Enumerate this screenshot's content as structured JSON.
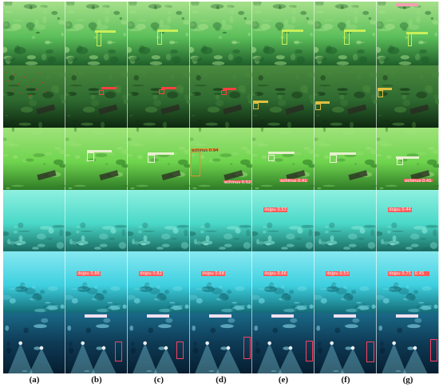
{
  "columns": [
    "(a)",
    "(b)",
    "(c)",
    "(d)",
    "(e)",
    "(f)",
    "(g)"
  ],
  "rows": [
    {
      "scene": "green-seagrass",
      "colors": {
        "base": "#3d9a45",
        "mid": "#5cbf5a",
        "light": "#a6e08a",
        "dark": "#1f5e2a"
      },
      "annotations": [
        {
          "column": 1,
          "kind": "box",
          "color": "#c8f05a"
        },
        {
          "column": 1,
          "kind": "label",
          "text": "",
          "color": "#c8f05a"
        },
        {
          "column": 2,
          "kind": "box",
          "color": "#c8f05a"
        },
        {
          "column": 2,
          "kind": "label",
          "text": "",
          "color": "#c8f05a"
        },
        {
          "column": 4,
          "kind": "box",
          "color": "#c8f05a"
        },
        {
          "column": 4,
          "kind": "label",
          "text": "",
          "color": "#c8f05a"
        },
        {
          "column": 5,
          "kind": "box",
          "color": "#c8f05a"
        },
        {
          "column": 5,
          "kind": "label",
          "text": "",
          "color": "#c8f05a"
        },
        {
          "column": 6,
          "kind": "box",
          "color": "#c8f05a"
        },
        {
          "column": 6,
          "kind": "label",
          "text": "",
          "color": "#c8f05a"
        },
        {
          "column": 6,
          "kind": "label",
          "text": "",
          "color": "#f0a0b0"
        }
      ]
    },
    {
      "scene": "dark-green-bottom",
      "colors": {
        "base": "#1f4a22",
        "mid": "#2e6a30",
        "light": "#4a8a3e",
        "dark": "#0e2810"
      },
      "annotations": [
        {
          "column": 0,
          "kind": "dots",
          "color": "#e03020"
        },
        {
          "column": 1,
          "kind": "box",
          "color": "#ff4040"
        },
        {
          "column": 1,
          "kind": "label",
          "text": "",
          "color": "#ff4040"
        },
        {
          "column": 2,
          "kind": "box",
          "color": "#ff4040"
        },
        {
          "column": 2,
          "kind": "label",
          "text": "",
          "color": "#ff4040"
        },
        {
          "column": 3,
          "kind": "box",
          "color": "#ff4040"
        },
        {
          "column": 3,
          "kind": "label",
          "text": "",
          "color": "#ff4040"
        },
        {
          "column": 4,
          "kind": "box",
          "color": "#e0c040"
        },
        {
          "column": 4,
          "kind": "label",
          "text": "",
          "color": "#e0c040"
        },
        {
          "column": 5,
          "kind": "box",
          "color": "#e0c040"
        },
        {
          "column": 5,
          "kind": "label",
          "text": "",
          "color": "#e0c040"
        },
        {
          "column": 6,
          "kind": "box",
          "color": "#e0c040"
        },
        {
          "column": 6,
          "kind": "label",
          "text": "",
          "color": "#e0c040"
        }
      ]
    },
    {
      "scene": "bright-green-water",
      "colors": {
        "base": "#4cc23a",
        "mid": "#6fd44e",
        "light": "#9fe27a",
        "dark": "#2e7a26"
      },
      "annotations": [
        {
          "column": 1,
          "kind": "box",
          "color": "#e8f0d0"
        },
        {
          "column": 1,
          "kind": "label",
          "text": "",
          "color": "#e8f0d0"
        },
        {
          "column": 2,
          "kind": "box",
          "color": "#e8f0d0"
        },
        {
          "column": 2,
          "kind": "label",
          "text": "",
          "color": "#e8f0d0"
        },
        {
          "column": 3,
          "kind": "box",
          "color": "#e09030"
        },
        {
          "column": 3,
          "kind": "label",
          "text": "echinus 0.94",
          "color": "#e09030"
        },
        {
          "column": 3,
          "kind": "label",
          "text": "echinus 0.52",
          "color": "#ff6060"
        },
        {
          "column": 4,
          "kind": "box",
          "color": "#e8f0d0"
        },
        {
          "column": 4,
          "kind": "label",
          "text": "",
          "color": "#e8f0d0"
        },
        {
          "column": 4,
          "kind": "label",
          "text": "echinus 0.41",
          "color": "#ff6060"
        },
        {
          "column": 5,
          "kind": "box",
          "color": "#e8f0d0"
        },
        {
          "column": 5,
          "kind": "label",
          "text": "",
          "color": "#e8f0d0"
        },
        {
          "column": 6,
          "kind": "box",
          "color": "#e8f0d0"
        },
        {
          "column": 6,
          "kind": "label",
          "text": "",
          "color": "#e8f0d0"
        },
        {
          "column": 6,
          "kind": "label",
          "text": "echinus 0.41",
          "color": "#ff6060"
        }
      ]
    },
    {
      "scene": "cyan-water",
      "colors": {
        "base": "#2ac0b0",
        "mid": "#4ad8c8",
        "light": "#8ef0e0",
        "dark": "#1a6a60"
      },
      "annotations": [
        {
          "column": 4,
          "kind": "label",
          "text": "dojpu 0.53",
          "color": "#ff5a5a"
        },
        {
          "column": 6,
          "kind": "label",
          "text": "dojpu 0.44",
          "color": "#ff5a5a"
        }
      ]
    },
    {
      "scene": "cyan-shelf",
      "colors": {
        "base": "#1fb8c8",
        "mid": "#3ed0e0",
        "light": "#86e8f0",
        "dark": "#136c76"
      },
      "annotations": [
        {
          "column": 1,
          "kind": "label",
          "text": "dojpu 0.86",
          "color": "#ff5a5a"
        },
        {
          "column": 2,
          "kind": "label",
          "text": "dojpu 0.82",
          "color": "#ff5a5a"
        },
        {
          "column": 3,
          "kind": "label",
          "text": "dojpu 0.68",
          "color": "#ff5a5a"
        },
        {
          "column": 4,
          "kind": "label",
          "text": "dojpu 0.66",
          "color": "#ff5a5a"
        },
        {
          "column": 5,
          "kind": "label",
          "text": "dojpu 0.53",
          "color": "#ff5a5a"
        },
        {
          "column": 6,
          "kind": "label",
          "text": "dojpu 0.75",
          "color": "#ff5a5a"
        },
        {
          "column": 6,
          "kind": "label",
          "text": "0.45",
          "color": "#ff5a5a"
        }
      ]
    },
    {
      "scene": "dark-blue-lights",
      "colors": {
        "base": "#0e3a55",
        "mid": "#1a6a88",
        "light": "#8fe0f0",
        "dark": "#061e30"
      },
      "annotations": [
        {
          "column": 1,
          "kind": "label",
          "text": "",
          "color": "#f0e0f0"
        },
        {
          "column": 1,
          "kind": "box",
          "color": "#ff4060"
        },
        {
          "column": 2,
          "kind": "label",
          "text": "",
          "color": "#f0e0f0"
        },
        {
          "column": 2,
          "kind": "box",
          "color": "#ff4060"
        },
        {
          "column": 3,
          "kind": "label",
          "text": "",
          "color": "#f0e0f0"
        },
        {
          "column": 3,
          "kind": "box",
          "color": "#ff4060"
        },
        {
          "column": 4,
          "kind": "label",
          "text": "",
          "color": "#f0e0f0"
        },
        {
          "column": 4,
          "kind": "box",
          "color": "#ff4060"
        },
        {
          "column": 5,
          "kind": "label",
          "text": "",
          "color": "#f0e0f0"
        },
        {
          "column": 5,
          "kind": "box",
          "color": "#ff4060"
        },
        {
          "column": 6,
          "kind": "label",
          "text": "",
          "color": "#f0e0f0"
        },
        {
          "column": 6,
          "kind": "box",
          "color": "#ff4060"
        }
      ]
    }
  ]
}
